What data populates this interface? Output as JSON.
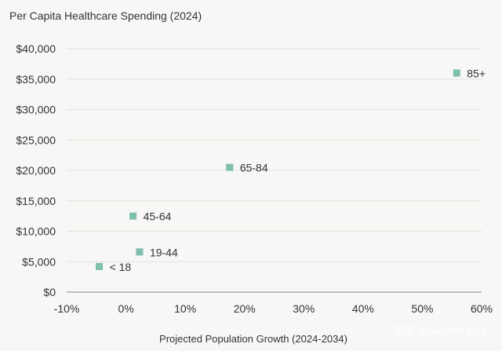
{
  "chart_data": {
    "type": "scatter",
    "title": "Per Capita Healthcare Spending (2024)",
    "xlabel": "Projected Population Growth (2024-2034)",
    "ylabel": "",
    "xlim": [
      -10,
      60
    ],
    "ylim": [
      0,
      40000
    ],
    "x_ticks": [
      -10,
      0,
      10,
      20,
      30,
      40,
      50,
      60
    ],
    "x_tick_labels": [
      "-10%",
      "0%",
      "10%",
      "20%",
      "30%",
      "40%",
      "50%",
      "60%"
    ],
    "y_ticks": [
      0,
      5000,
      10000,
      15000,
      20000,
      25000,
      30000,
      35000,
      40000
    ],
    "y_tick_labels": [
      "$0",
      "$5,000",
      "$10,000",
      "$15,000",
      "$20,000",
      "$25,000",
      "$30,000",
      "$35,000",
      "$40,000"
    ],
    "grid": true,
    "marker_color": "#7fbfad",
    "points": [
      {
        "label": "< 18",
        "x": -4.5,
        "y": 4200
      },
      {
        "label": "19-44",
        "x": 2.3,
        "y": 6600
      },
      {
        "label": "45-64",
        "x": 1.2,
        "y": 12500
      },
      {
        "label": "65-84",
        "x": 17.5,
        "y": 20500
      },
      {
        "label": "85+",
        "x": 55.8,
        "y": 36000
      }
    ],
    "watermark": "知乎 @Seven Boy"
  }
}
